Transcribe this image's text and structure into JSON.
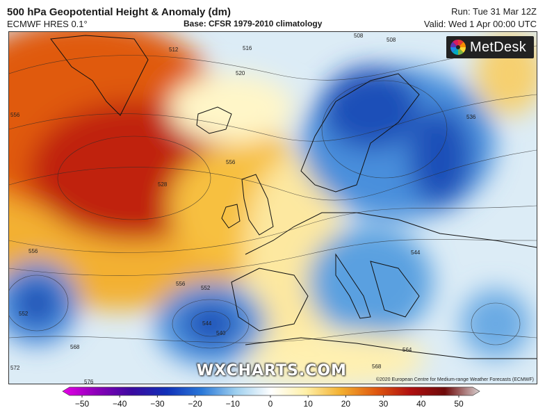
{
  "header": {
    "title": "500 hPa Geopotential Height & Anomaly (dm)",
    "model": "ECMWF HRES 0.1°",
    "base": "Base: CFSR 1979-2010 climatology",
    "run": "Run: Tue 31 Mar 12Z",
    "valid": "Valid: Wed 1 Apr 00:00 UTC"
  },
  "brand": {
    "logo_text": "MetDesk",
    "watermark": "WXCHARTS.COM",
    "copyright": "©2020 European Centre for Medium-range Weather Forecasts (ECMWF)"
  },
  "contour_labels": [
    "512",
    "516",
    "520",
    "508",
    "508",
    "536",
    "556",
    "556",
    "544",
    "552",
    "556",
    "552",
    "544",
    "568",
    "564",
    "568",
    "572",
    "528",
    "540",
    "556",
    "576"
  ],
  "colorbar": {
    "ticks": [
      "−50",
      "−40",
      "−30",
      "−20",
      "−10",
      "0",
      "10",
      "20",
      "30",
      "40",
      "50"
    ],
    "colors": [
      "#e600e6",
      "#8a00b8",
      "#3a0aa0",
      "#1030b8",
      "#2a78d8",
      "#9fd0ef",
      "#ffffff",
      "#fff0a8",
      "#f3b030",
      "#e05a10",
      "#b01010",
      "#6e0a0a",
      "#d8d0d0"
    ]
  }
}
